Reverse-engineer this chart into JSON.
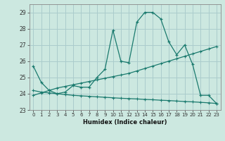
{
  "xlabel": "Humidex (Indice chaleur)",
  "background_color": "#cce8e0",
  "grid_color": "#aacccc",
  "line_color": "#1a7a6e",
  "xlim": [
    -0.5,
    23.5
  ],
  "ylim": [
    23,
    29.5
  ],
  "yticks": [
    23,
    24,
    25,
    26,
    27,
    28,
    29
  ],
  "xticks": [
    0,
    1,
    2,
    3,
    4,
    5,
    6,
    7,
    8,
    9,
    10,
    11,
    12,
    13,
    14,
    15,
    16,
    17,
    18,
    19,
    20,
    21,
    22,
    23
  ],
  "line1_x": [
    0,
    1,
    2,
    3,
    4,
    5,
    6,
    7,
    8,
    9,
    10,
    11,
    12,
    13,
    14,
    15,
    16,
    17,
    18,
    19,
    20,
    21,
    22,
    23
  ],
  "line1_y": [
    25.7,
    24.7,
    24.2,
    24.0,
    24.1,
    24.5,
    24.4,
    24.4,
    25.0,
    25.5,
    27.9,
    26.0,
    25.9,
    28.4,
    29.0,
    29.0,
    28.6,
    27.2,
    26.4,
    27.0,
    25.8,
    23.9,
    23.9,
    23.4
  ],
  "line2_x": [
    0,
    1,
    2,
    3,
    4,
    5,
    6,
    7,
    8,
    9,
    10,
    11,
    12,
    13,
    14,
    15,
    16,
    17,
    18,
    19,
    20,
    21,
    22,
    23
  ],
  "line2_y": [
    23.9,
    24.05,
    24.2,
    24.35,
    24.45,
    24.55,
    24.65,
    24.75,
    24.85,
    24.95,
    25.05,
    25.15,
    25.25,
    25.4,
    25.55,
    25.7,
    25.85,
    26.0,
    26.15,
    26.3,
    26.45,
    26.6,
    26.75,
    26.9
  ],
  "line3_x": [
    0,
    1,
    2,
    3,
    4,
    5,
    6,
    7,
    8,
    9,
    10,
    11,
    12,
    13,
    14,
    15,
    16,
    17,
    18,
    19,
    20,
    21,
    22,
    23
  ],
  "line3_y": [
    24.2,
    24.1,
    24.05,
    24.0,
    23.95,
    23.9,
    23.87,
    23.84,
    23.81,
    23.78,
    23.75,
    23.72,
    23.7,
    23.68,
    23.65,
    23.63,
    23.6,
    23.58,
    23.55,
    23.52,
    23.5,
    23.47,
    23.44,
    23.4
  ]
}
